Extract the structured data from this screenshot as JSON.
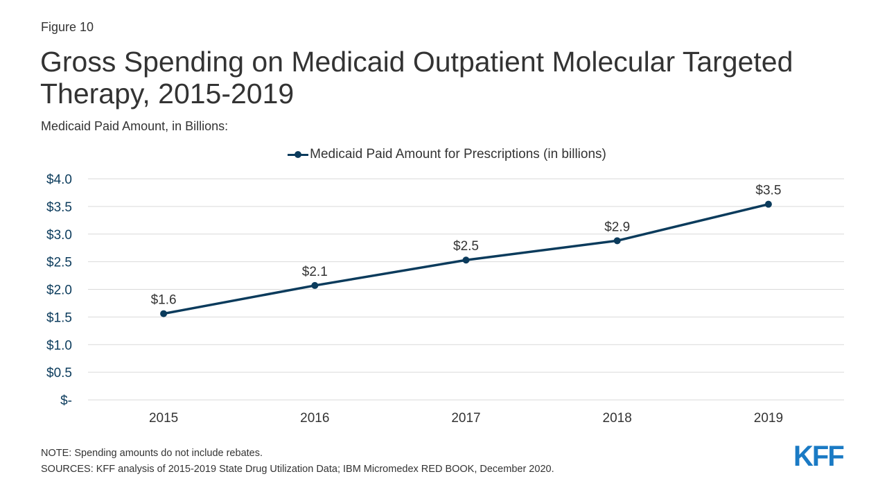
{
  "header": {
    "figure_label": "Figure 10",
    "title": "Gross Spending on Medicaid Outpatient Molecular Targeted Therapy, 2015-2019",
    "subtitle": "Medicaid Paid Amount, in Billions:"
  },
  "chart_data": {
    "type": "line",
    "title": "Gross Spending on Medicaid Outpatient Molecular Targeted Therapy, 2015-2019",
    "subtitle": "Medicaid Paid Amount, in Billions:",
    "xlabel": "",
    "ylabel": "",
    "categories": [
      "2015",
      "2016",
      "2017",
      "2018",
      "2019"
    ],
    "series": [
      {
        "name": "Medicaid Paid Amount for Prescriptions (in billions)",
        "values": [
          1.56,
          2.07,
          2.53,
          2.88,
          3.54
        ],
        "labels": [
          "$1.6",
          "$2.1",
          "$2.5",
          "$2.9",
          "$3.5"
        ],
        "color": "#0b3b5c"
      }
    ],
    "ylim": [
      0,
      4.0
    ],
    "y_ticks": [
      0,
      0.5,
      1.0,
      1.5,
      2.0,
      2.5,
      3.0,
      3.5,
      4.0
    ],
    "y_tick_labels": [
      "$-",
      "$0.5",
      "$1.0",
      "$1.5",
      "$2.0",
      "$2.5",
      "$3.0",
      "$3.5",
      "$4.0"
    ],
    "grid": true,
    "legend_position": "top-center",
    "tick_color": "#0b3b5c",
    "grid_color": "#d9d9d9"
  },
  "footer": {
    "note": "NOTE: Spending amounts do not include rebates.",
    "sources": "SOURCES: KFF analysis of 2015-2019 State Drug Utilization Data; IBM Micromedex RED BOOK, December 2020.",
    "logo_text": "KFF",
    "logo_color": "#1a7ac4"
  }
}
